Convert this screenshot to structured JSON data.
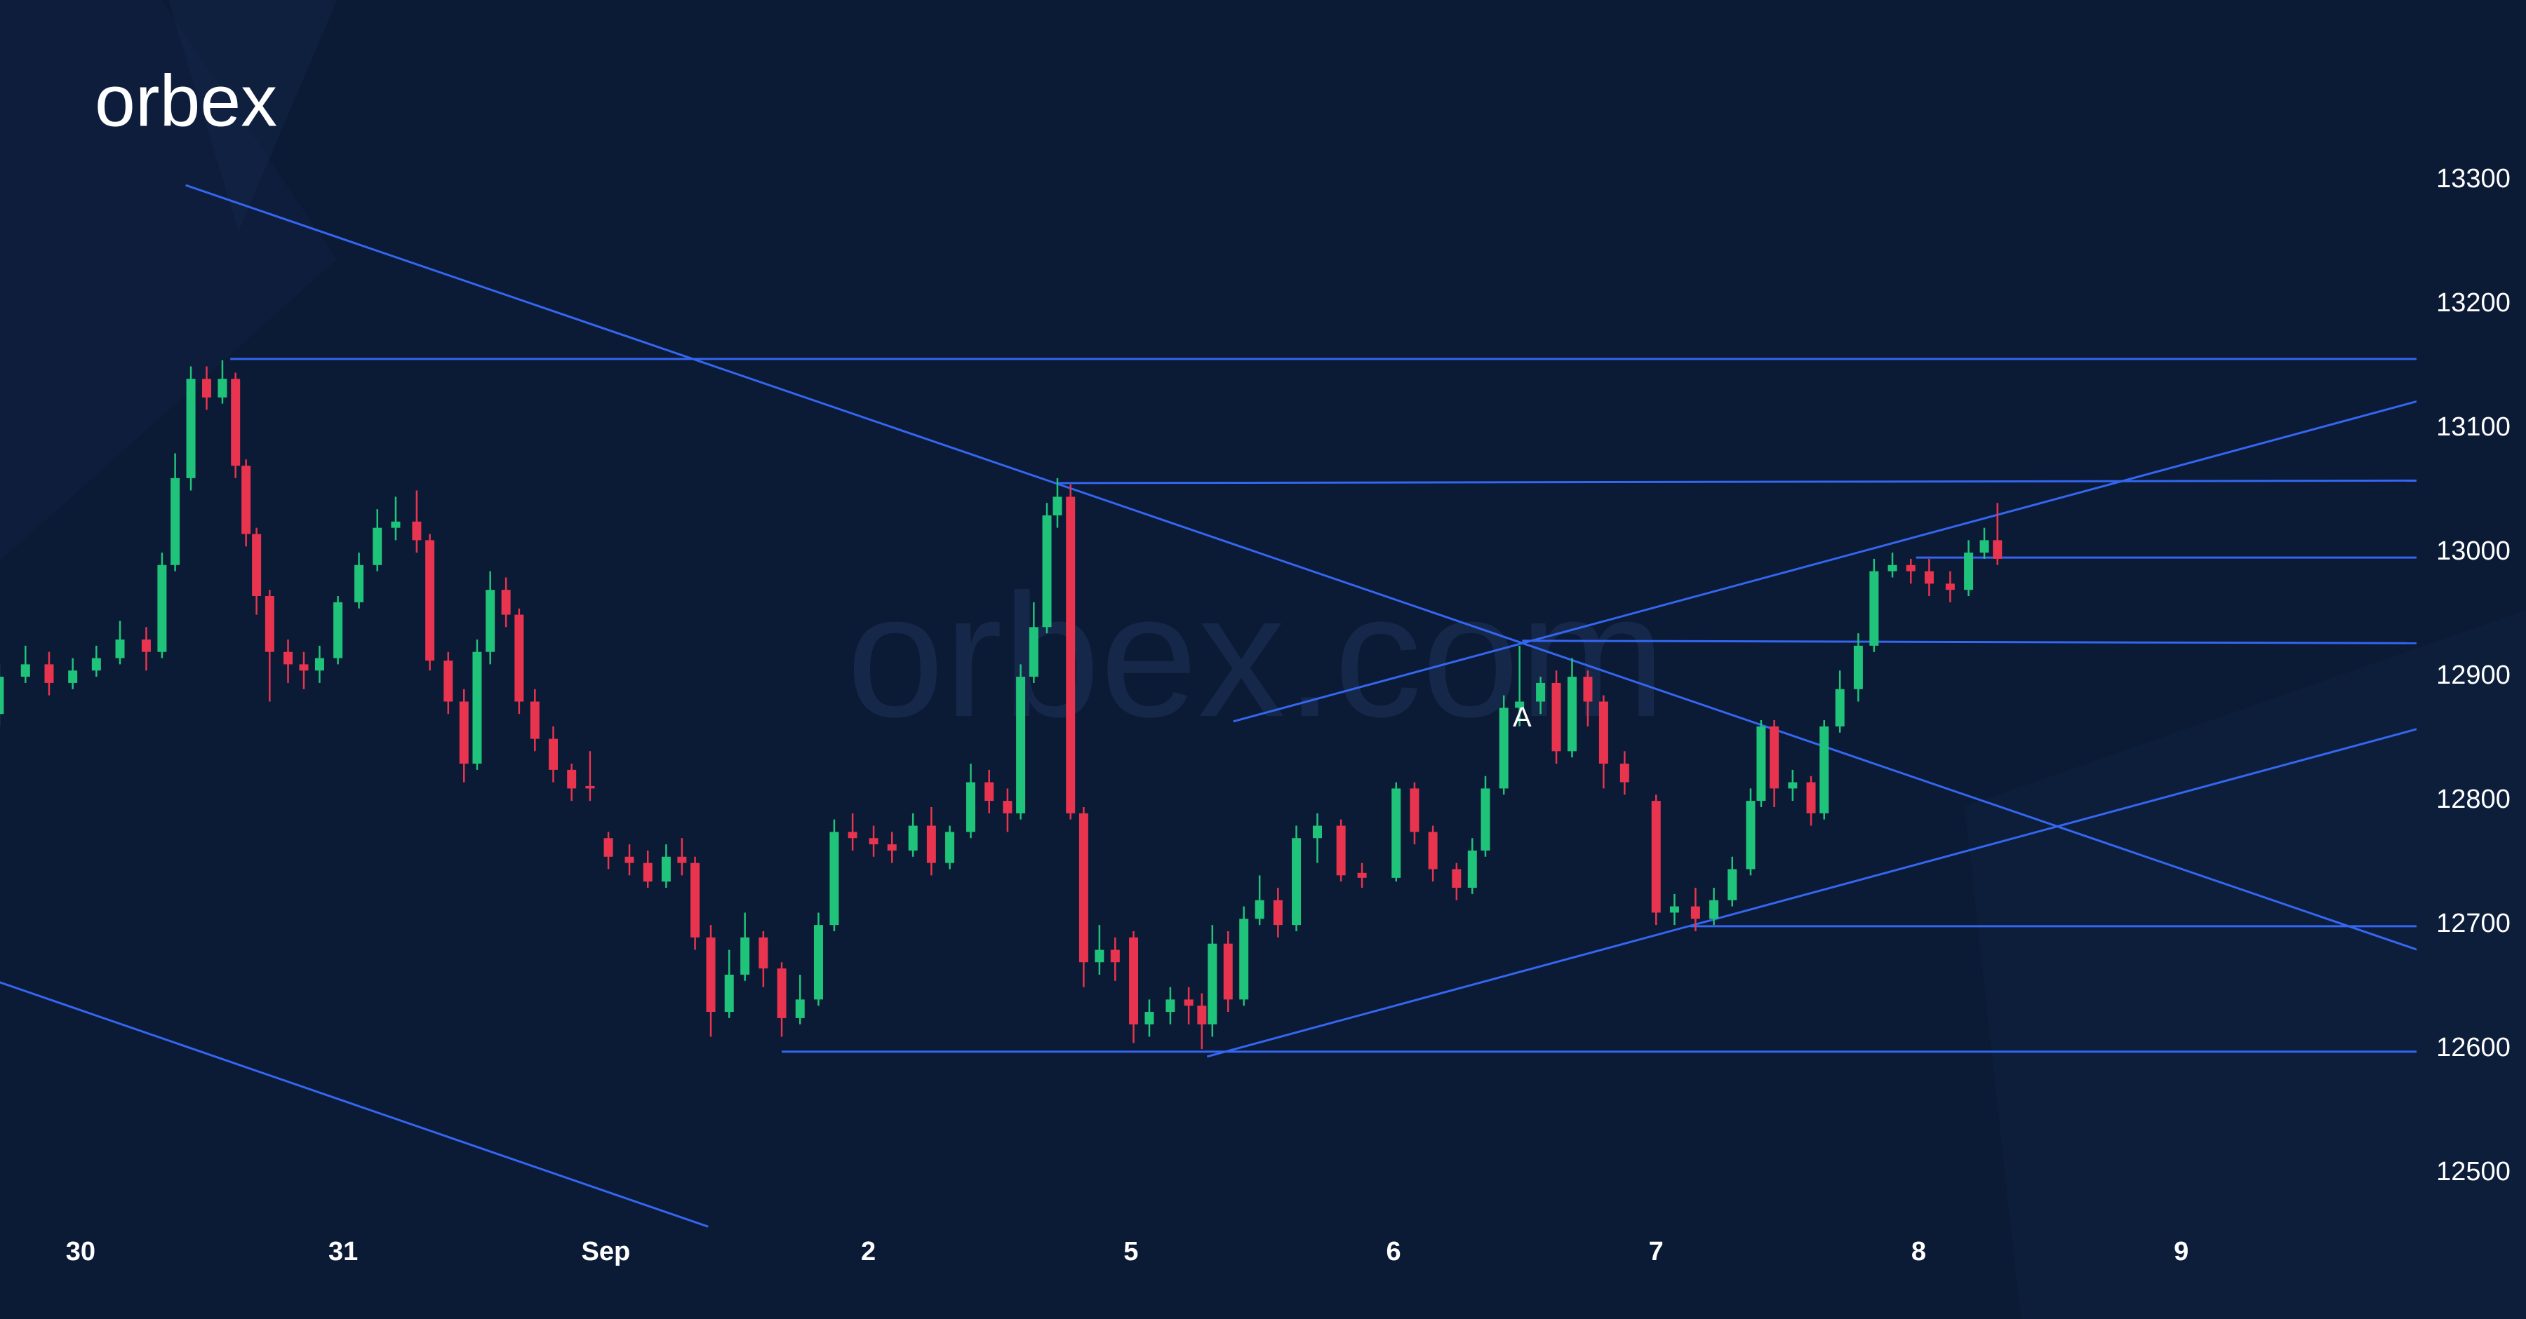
{
  "chart_data": {
    "type": "candlestick",
    "logo": "orbex",
    "watermark": "orbex.com",
    "xlim": [
      -0.307,
      8.896
    ],
    "xticks": [
      {
        "value": 0,
        "label": "30"
      },
      {
        "value": 1,
        "label": "31"
      },
      {
        "value": 2,
        "label": "Sep"
      },
      {
        "value": 3,
        "label": "2"
      },
      {
        "value": 4,
        "label": "5"
      },
      {
        "value": 5,
        "label": "6"
      },
      {
        "value": 6,
        "label": "7"
      },
      {
        "value": 7,
        "label": "8"
      },
      {
        "value": 8,
        "label": "9"
      }
    ],
    "ylim": [
      12460,
      13300
    ],
    "yticks": [
      12500,
      12600,
      12700,
      12800,
      12900,
      13000,
      13100,
      13200,
      13300
    ],
    "up_color": "#1fc47a",
    "down_color": "#e8344e",
    "line_color": "#3466f0",
    "x": [
      -0.31,
      -0.21,
      -0.12,
      -0.03,
      0.06,
      0.15,
      0.25,
      0.31,
      0.36,
      0.42,
      0.48,
      0.54,
      0.59,
      0.63,
      0.67,
      0.72,
      0.79,
      0.85,
      0.91,
      0.98,
      1.06,
      1.13,
      1.2,
      1.28,
      1.33,
      1.4,
      1.46,
      1.51,
      1.56,
      1.62,
      1.67,
      1.73,
      1.8,
      1.87,
      1.94,
      2.01,
      2.09,
      2.16,
      2.23,
      2.29,
      2.34,
      2.4,
      2.47,
      2.53,
      2.6,
      2.67,
      2.74,
      2.81,
      2.87,
      2.94,
      3.02,
      3.09,
      3.17,
      3.24,
      3.31,
      3.39,
      3.46,
      3.53,
      3.58,
      3.63,
      3.68,
      3.72,
      3.77,
      3.82,
      3.88,
      3.94,
      4.01,
      4.07,
      4.15,
      4.22,
      4.27,
      4.31,
      4.37,
      4.43,
      4.49,
      4.56,
      4.63,
      4.71,
      4.8,
      4.88,
      5.01,
      5.08,
      5.15,
      5.24,
      5.3,
      5.35,
      5.42,
      5.48,
      5.56,
      5.62,
      5.68,
      5.74,
      5.8,
      5.88,
      6.0,
      6.07,
      6.15,
      6.22,
      6.29,
      6.36,
      6.4,
      6.45,
      6.52,
      6.59,
      6.64,
      6.7,
      6.77,
      6.83,
      6.9,
      6.97,
      7.04,
      7.12,
      7.19,
      7.25,
      7.3
    ],
    "open": [
      12870,
      12900,
      12910,
      12895,
      12905,
      12915,
      12930,
      12920,
      12990,
      13060,
      13140,
      13125,
      13140,
      13070,
      13015,
      12965,
      12920,
      12910,
      12905,
      12915,
      12960,
      12990,
      13020,
      13025,
      13010,
      12913,
      12880,
      12830,
      12920,
      12970,
      12950,
      12880,
      12850,
      12825,
      12812,
      12770,
      12755,
      12750,
      12735,
      12755,
      12750,
      12690,
      12630,
      12660,
      12690,
      12665,
      12625,
      12640,
      12700,
      12775,
      12770,
      12765,
      12760,
      12780,
      12750,
      12775,
      12815,
      12800,
      12790,
      12900,
      12940,
      13030,
      13045,
      12790,
      12670,
      12680,
      12690,
      12620,
      12630,
      12640,
      12635,
      12620,
      12685,
      12640,
      12705,
      12720,
      12700,
      12770,
      12780,
      12742,
      12738,
      12810,
      12775,
      12745,
      12730,
      12760,
      12810,
      12875,
      12880,
      12895,
      12840,
      12900,
      12880,
      12830,
      12800,
      12710,
      12715,
      12705,
      12720,
      12745,
      12800,
      12860,
      12810,
      12815,
      12790,
      12860,
      12890,
      12925,
      12985,
      12990,
      12985,
      12975,
      12970,
      13000,
      13010
    ],
    "high": [
      12910,
      12925,
      12920,
      12915,
      12925,
      12945,
      12940,
      13000,
      13080,
      13150,
      13150,
      13155,
      13145,
      13075,
      13020,
      12970,
      12930,
      12920,
      12925,
      12965,
      13000,
      13035,
      13045,
      13050,
      13015,
      12920,
      12890,
      12930,
      12985,
      12980,
      12955,
      12890,
      12860,
      12830,
      12840,
      12775,
      12765,
      12760,
      12765,
      12770,
      12755,
      12700,
      12680,
      12710,
      12695,
      12670,
      12660,
      12710,
      12785,
      12790,
      12780,
      12775,
      12790,
      12795,
      12780,
      12830,
      12825,
      12810,
      12910,
      12960,
      13040,
      13060,
      13055,
      12795,
      12700,
      12690,
      12695,
      12640,
      12650,
      12650,
      12645,
      12700,
      12695,
      12715,
      12740,
      12730,
      12780,
      12790,
      12785,
      12750,
      12815,
      12815,
      12780,
      12750,
      12770,
      12820,
      12885,
      12925,
      12900,
      12905,
      12915,
      12905,
      12885,
      12840,
      12805,
      12725,
      12730,
      12730,
      12755,
      12810,
      12865,
      12865,
      12825,
      12820,
      12865,
      12905,
      12935,
      12995,
      13000,
      12995,
      12995,
      12985,
      13010,
      13020,
      13040
    ],
    "low": [
      12860,
      12895,
      12885,
      12890,
      12900,
      12910,
      12905,
      12915,
      12985,
      13050,
      13115,
      13120,
      13060,
      13005,
      12950,
      12880,
      12895,
      12890,
      12895,
      12910,
      12955,
      12985,
      13010,
      13000,
      12905,
      12870,
      12815,
      12825,
      12910,
      12940,
      12870,
      12840,
      12815,
      12800,
      12800,
      12745,
      12740,
      12730,
      12730,
      12740,
      12680,
      12610,
      12625,
      12655,
      12650,
      12610,
      12620,
      12635,
      12695,
      12760,
      12755,
      12750,
      12755,
      12740,
      12745,
      12770,
      12790,
      12775,
      12785,
      12895,
      12935,
      13020,
      12785,
      12650,
      12660,
      12655,
      12605,
      12610,
      12620,
      12620,
      12600,
      12610,
      12630,
      12635,
      12700,
      12690,
      12695,
      12750,
      12735,
      12730,
      12735,
      12765,
      12735,
      12720,
      12725,
      12755,
      12805,
      12860,
      12870,
      12830,
      12835,
      12860,
      12810,
      12805,
      12700,
      12700,
      12695,
      12700,
      12715,
      12740,
      12795,
      12795,
      12800,
      12780,
      12785,
      12855,
      12880,
      12920,
      12980,
      12975,
      12965,
      12960,
      12965,
      12995,
      12990
    ],
    "close": [
      12900,
      12910,
      12895,
      12905,
      12915,
      12930,
      12920,
      12990,
      13060,
      13140,
      13125,
      13140,
      13070,
      13015,
      12965,
      12920,
      12910,
      12905,
      12915,
      12960,
      12990,
      13020,
      13025,
      13010,
      12913,
      12880,
      12830,
      12920,
      12970,
      12950,
      12880,
      12850,
      12825,
      12810,
      12810,
      12755,
      12750,
      12735,
      12755,
      12750,
      12690,
      12630,
      12660,
      12690,
      12665,
      12625,
      12640,
      12700,
      12775,
      12770,
      12765,
      12760,
      12780,
      12750,
      12775,
      12815,
      12800,
      12790,
      12900,
      12940,
      13030,
      13045,
      12790,
      12670,
      12680,
      12670,
      12620,
      12630,
      12640,
      12635,
      12620,
      12685,
      12640,
      12705,
      12720,
      12700,
      12770,
      12780,
      12740,
      12738,
      12810,
      12775,
      12745,
      12730,
      12760,
      12810,
      12875,
      12880,
      12895,
      12840,
      12900,
      12880,
      12830,
      12815,
      12710,
      12715,
      12705,
      12720,
      12745,
      12800,
      12860,
      12810,
      12815,
      12790,
      12860,
      12890,
      12925,
      12985,
      12990,
      12985,
      12975,
      12970,
      13000,
      13010,
      12995
    ],
    "lines": [
      {
        "x1": 0.4,
        "y1": 13296,
        "x2": 8.9,
        "y2": 12680
      },
      {
        "x1": 0.57,
        "y1": 13156,
        "x2": 8.9,
        "y2": 13156
      },
      {
        "x1": 3.72,
        "y1": 13056,
        "x2": 8.9,
        "y2": 13058
      },
      {
        "x1": 4.39,
        "y1": 12864,
        "x2": 8.9,
        "y2": 13122
      },
      {
        "x1": 6.99,
        "y1": 12996,
        "x2": 8.9,
        "y2": 12996
      },
      {
        "x1": 5.49,
        "y1": 12929,
        "x2": 8.9,
        "y2": 12927
      },
      {
        "x1": 4.29,
        "y1": 12594,
        "x2": 8.9,
        "y2": 12858
      },
      {
        "x1": 6.13,
        "y1": 12699,
        "x2": 8.9,
        "y2": 12699
      },
      {
        "x1": 2.67,
        "y1": 12598,
        "x2": 8.9,
        "y2": 12598
      },
      {
        "x1": -0.31,
        "y1": 12654,
        "x2": 2.39,
        "y2": 12457
      }
    ],
    "annotations": [
      {
        "text": "A",
        "x": 5.49,
        "y": 12866
      }
    ]
  }
}
